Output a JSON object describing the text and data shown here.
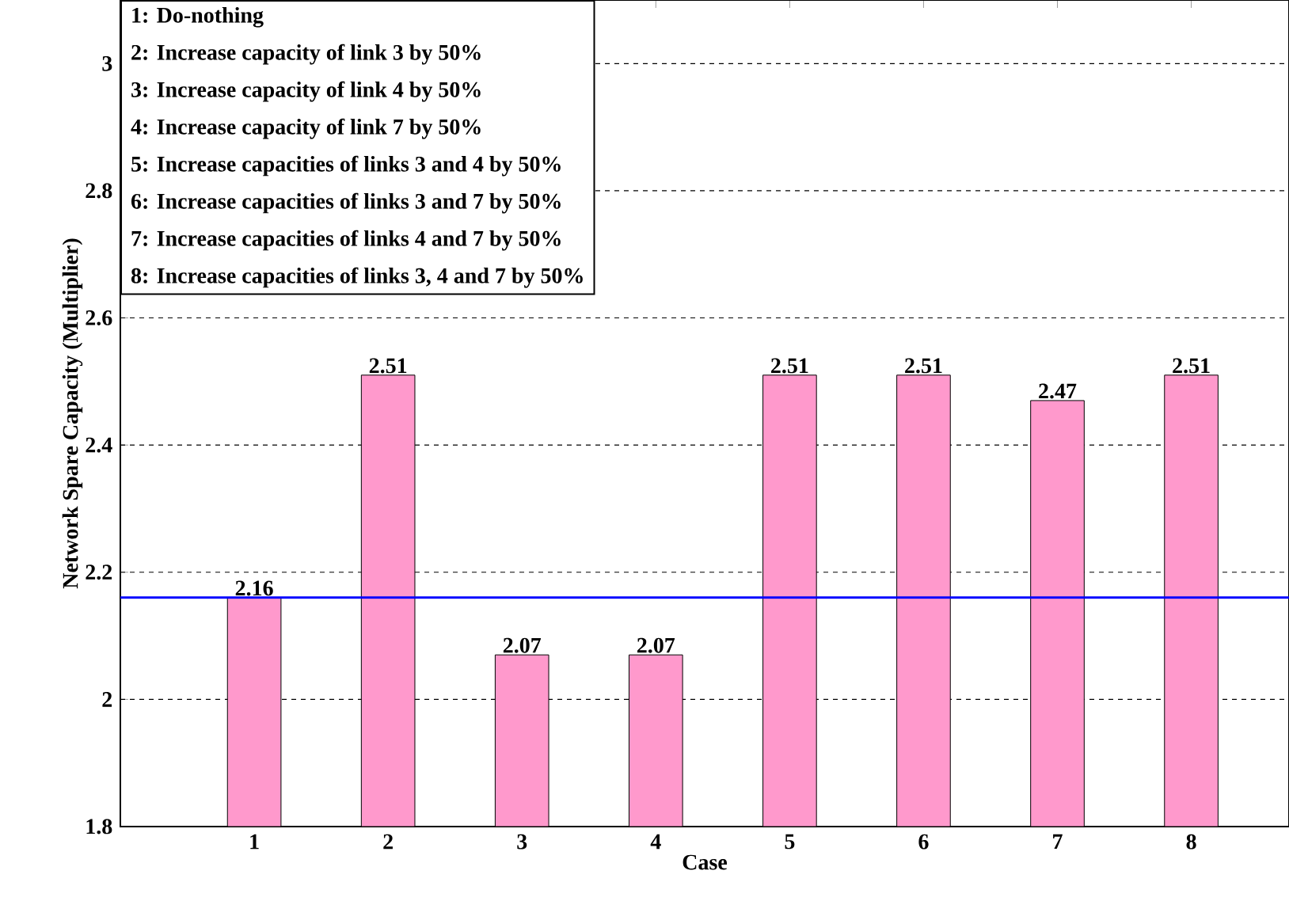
{
  "chart_data": {
    "type": "bar",
    "xlabel": "Case",
    "ylabel": "Network Spare Capacity (Multiplier)",
    "categories": [
      "1",
      "2",
      "3",
      "4",
      "5",
      "6",
      "7",
      "8"
    ],
    "values": [
      2.16,
      2.51,
      2.07,
      2.07,
      2.51,
      2.51,
      2.47,
      2.51
    ],
    "color": "#ff99cc",
    "data_labels": true,
    "ylim": [
      1.8,
      3.1
    ],
    "yticks": [
      1.8,
      2,
      2.2,
      2.4,
      2.6,
      2.8,
      3
    ],
    "grid": "y",
    "ref_lines": [
      {
        "axis": "y",
        "value": 2.16,
        "color": "#0000ff"
      }
    ],
    "annotations": [
      "1: Do-nothing",
      "2: Increase capacity of link 3 by 50%",
      "3: Increase capacity of link 4 by 50%",
      "4: Increase capacity of link 7 by 50%",
      "5: Increase capacities of links 3 and 4 by 50%",
      "6: Increase capacities of links 3 and 7 by 50%",
      "7: Increase capacities of links 4 and 7 by 50%",
      "8: Increase capacities of links 3, 4 and 7 by 50%"
    ]
  }
}
